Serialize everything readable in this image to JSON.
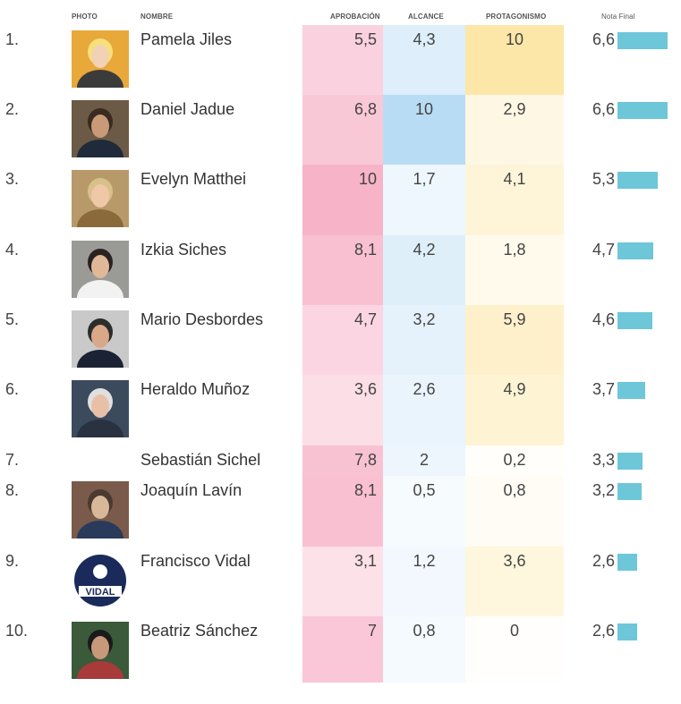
{
  "headers": {
    "photo": "PHOTO",
    "nombre": "NOMBRE",
    "aprobacion": "APROBACIÓN",
    "alcance": "ALCANCE",
    "protagonismo": "PROTAGONISMO",
    "nota_final": "Nota Final"
  },
  "colors": {
    "aprobacion": "#f7b3c8",
    "alcance": "#b9dcf5",
    "protagonismo": "#fde7a8",
    "nota_bar": "#6ec6d9"
  },
  "chart_data": {
    "type": "table",
    "columns": [
      "Nombre",
      "Aprobación",
      "Alcance",
      "Protagonismo",
      "Nota Final"
    ],
    "rows": [
      {
        "rank": "1.",
        "name": "Pamela Jiles",
        "has_photo": true,
        "aprobacion": "5,5",
        "alcance": "4,3",
        "protagonismo": "10",
        "nota_final": "6,6",
        "ap": 5.5,
        "al": 4.3,
        "pr": 10,
        "nf": 6.6
      },
      {
        "rank": "2.",
        "name": "Daniel Jadue",
        "has_photo": true,
        "aprobacion": "6,8",
        "alcance": "10",
        "protagonismo": "2,9",
        "nota_final": "6,6",
        "ap": 6.8,
        "al": 10,
        "pr": 2.9,
        "nf": 6.6
      },
      {
        "rank": "3.",
        "name": "Evelyn Matthei",
        "has_photo": true,
        "aprobacion": "10",
        "alcance": "1,7",
        "protagonismo": "4,1",
        "nota_final": "5,3",
        "ap": 10,
        "al": 1.7,
        "pr": 4.1,
        "nf": 5.3
      },
      {
        "rank": "4.",
        "name": "Izkia Siches",
        "has_photo": true,
        "aprobacion": "8,1",
        "alcance": "4,2",
        "protagonismo": "1,8",
        "nota_final": "4,7",
        "ap": 8.1,
        "al": 4.2,
        "pr": 1.8,
        "nf": 4.7
      },
      {
        "rank": "5.",
        "name": "Mario Desbordes",
        "has_photo": true,
        "aprobacion": "4,7",
        "alcance": "3,2",
        "protagonismo": "5,9",
        "nota_final": "4,6",
        "ap": 4.7,
        "al": 3.2,
        "pr": 5.9,
        "nf": 4.6
      },
      {
        "rank": "6.",
        "name": "Heraldo Muñoz",
        "has_photo": true,
        "aprobacion": "3,6",
        "alcance": "2,6",
        "protagonismo": "4,9",
        "nota_final": "3,7",
        "ap": 3.6,
        "al": 2.6,
        "pr": 4.9,
        "nf": 3.7
      },
      {
        "rank": "7.",
        "name": "Sebastián Sichel",
        "has_photo": false,
        "aprobacion": "7,8",
        "alcance": "2",
        "protagonismo": "0,2",
        "nota_final": "3,3",
        "ap": 7.8,
        "al": 2,
        "pr": 0.2,
        "nf": 3.3
      },
      {
        "rank": "8.",
        "name": "Joaquín Lavín",
        "has_photo": true,
        "aprobacion": "8,1",
        "alcance": "0,5",
        "protagonismo": "0,8",
        "nota_final": "3,2",
        "ap": 8.1,
        "al": 0.5,
        "pr": 0.8,
        "nf": 3.2
      },
      {
        "rank": "9.",
        "name": "Francisco Vidal",
        "has_photo": true,
        "aprobacion": "3,1",
        "alcance": "1,2",
        "protagonismo": "3,6",
        "nota_final": "2,6",
        "ap": 3.1,
        "al": 1.2,
        "pr": 3.6,
        "nf": 2.6
      },
      {
        "rank": "10.",
        "name": "Beatriz Sánchez",
        "has_photo": true,
        "aprobacion": "7",
        "alcance": "0,8",
        "protagonismo": "0",
        "nota_final": "2,6",
        "ap": 7,
        "al": 0.8,
        "pr": 0,
        "nf": 2.6
      }
    ],
    "nota_final_max": 6.6
  },
  "photo_logo_text": "VIDAL"
}
